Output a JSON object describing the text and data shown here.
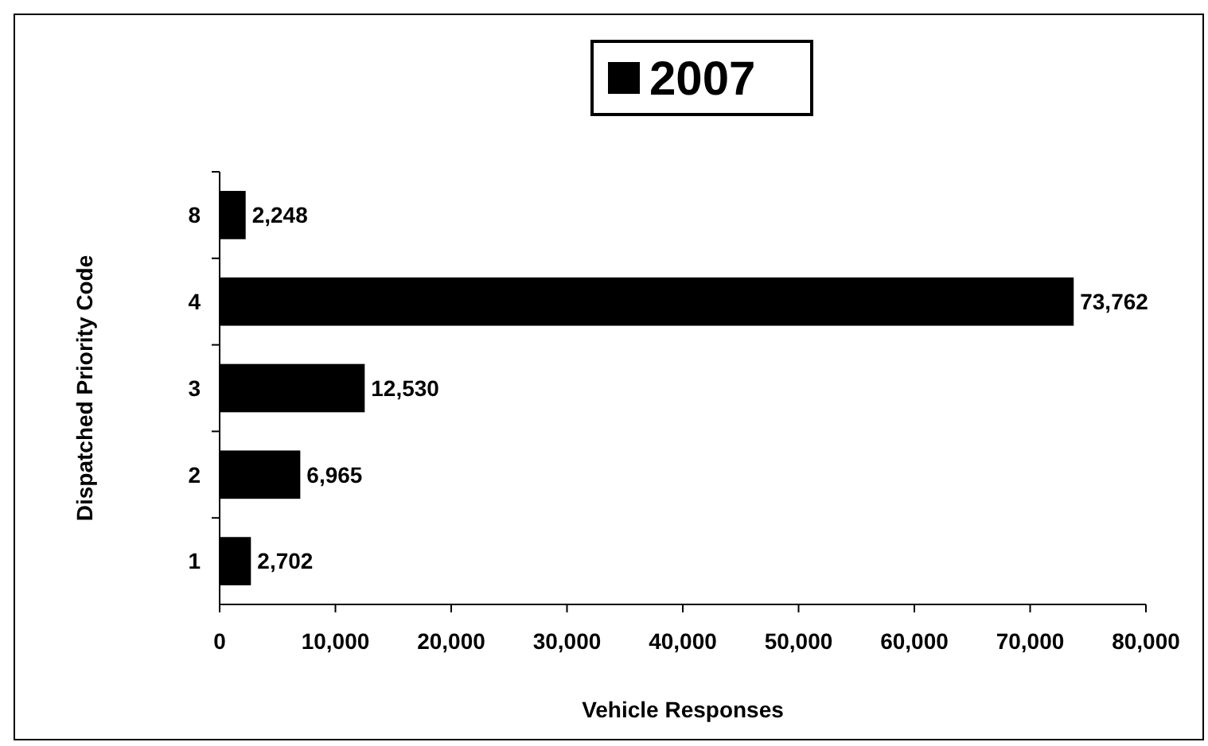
{
  "chart_data": {
    "type": "bar",
    "orientation": "horizontal",
    "categories": [
      "8",
      "4",
      "3",
      "2",
      "1"
    ],
    "series": [
      {
        "name": "2007",
        "color": "#000000",
        "values": [
          2248,
          73762,
          12530,
          6965,
          2702
        ],
        "value_labels": [
          "2,248",
          "73,762",
          "12,530",
          "6,965",
          "2,702"
        ]
      }
    ],
    "xlabel": "Vehicle Responses",
    "ylabel": "Dispatched Priority Code",
    "xlim": [
      0,
      80000
    ],
    "xticks": [
      0,
      {
        "value": 10000,
        "label": "10,000"
      },
      {
        "value": 20000,
        "label": "20,000"
      },
      {
        "value": 30000,
        "label": "30,000"
      },
      {
        "value": 40000,
        "label": "40,000"
      },
      {
        "value": 50000,
        "label": "50,000"
      },
      {
        "value": 60000,
        "label": "60,000"
      },
      {
        "value": 70000,
        "label": "70,000"
      },
      {
        "value": 80000,
        "label": "80,000"
      }
    ],
    "legend": "top",
    "grid": false
  }
}
